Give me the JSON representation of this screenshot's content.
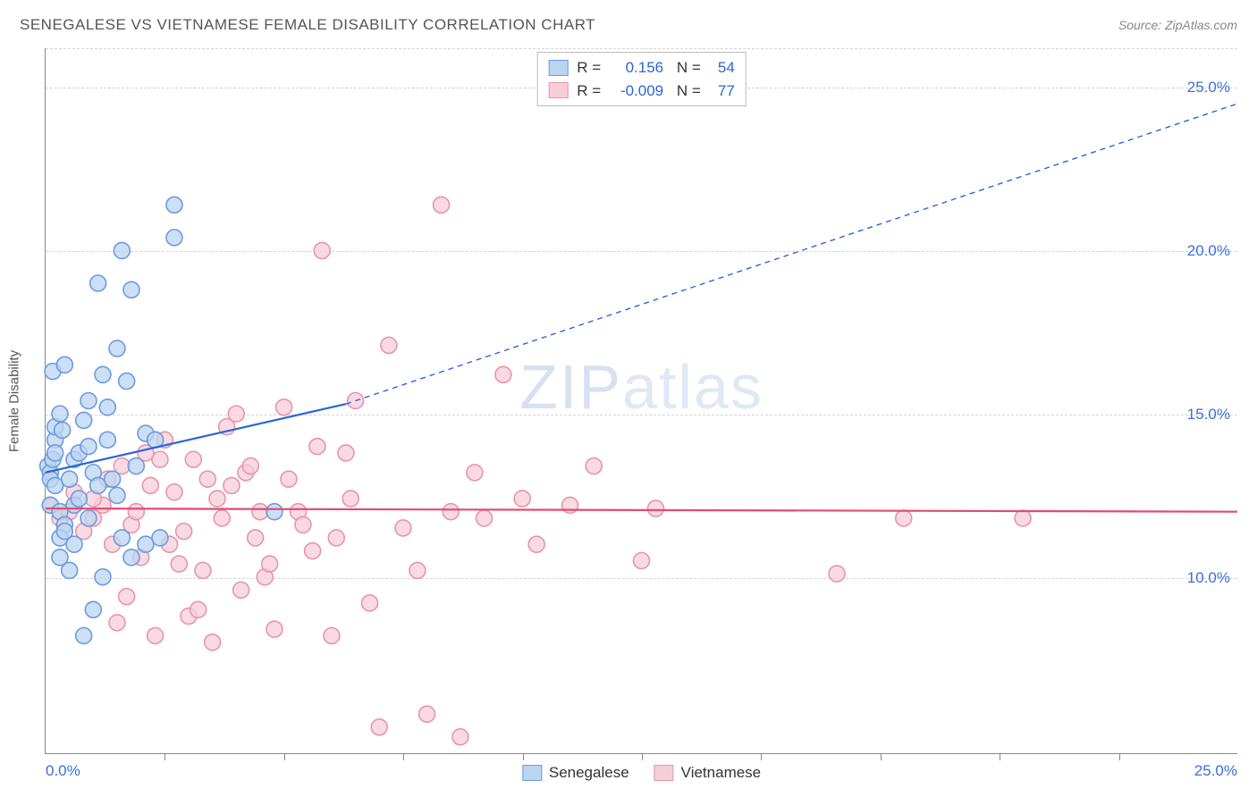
{
  "title": "SENEGALESE VS VIETNAMESE FEMALE DISABILITY CORRELATION CHART",
  "source": "Source: ZipAtlas.com",
  "watermark": "ZIPatlas",
  "ylabel": "Female Disability",
  "chart": {
    "type": "scatter",
    "xlim": [
      0,
      25
    ],
    "ylim": [
      4.6,
      26.2
    ],
    "x_origin_label": "0.0%",
    "x_max_label": "25.0%",
    "y_grid": [
      10,
      15,
      20,
      25
    ],
    "y_grid_labels": [
      "10.0%",
      "15.0%",
      "20.0%",
      "25.0%"
    ],
    "x_ticks": [
      2.5,
      5,
      7.5,
      10,
      12.5,
      15,
      17.5,
      20,
      22.5
    ],
    "grid_color": "#d5d5d5",
    "axis_color": "#888888",
    "tick_label_color": "#3b6fd6",
    "background_color": "#ffffff",
    "marker_radius": 9,
    "marker_stroke_width": 1.6,
    "line_width": 2.2,
    "dash_pattern": "6,5"
  },
  "series": [
    {
      "name": "Senegalese",
      "fill": "#bcd4f0",
      "stroke": "#6b9be0",
      "line_color": "#2b64d8",
      "R": "0.156",
      "N": "54",
      "regression": {
        "x1": 0,
        "y1": 13.2,
        "x2": 6.3,
        "y2": 15.3,
        "extend_to_x": 25,
        "extend_to_y": 24.5
      },
      "points": [
        [
          0.05,
          13.4
        ],
        [
          0.1,
          13.2
        ],
        [
          0.1,
          13.0
        ],
        [
          0.15,
          13.6
        ],
        [
          0.2,
          12.8
        ],
        [
          0.2,
          14.2
        ],
        [
          0.1,
          12.2
        ],
        [
          0.3,
          12.0
        ],
        [
          0.4,
          11.6
        ],
        [
          0.3,
          11.2
        ],
        [
          0.6,
          11.0
        ],
        [
          0.3,
          10.6
        ],
        [
          0.2,
          14.6
        ],
        [
          0.3,
          15.0
        ],
        [
          0.15,
          16.3
        ],
        [
          0.4,
          16.5
        ],
        [
          0.6,
          13.6
        ],
        [
          0.7,
          13.8
        ],
        [
          0.9,
          14.0
        ],
        [
          1.0,
          13.2
        ],
        [
          1.1,
          12.8
        ],
        [
          1.3,
          14.2
        ],
        [
          1.5,
          17.0
        ],
        [
          1.3,
          15.2
        ],
        [
          1.6,
          11.2
        ],
        [
          1.8,
          10.6
        ],
        [
          2.1,
          11.0
        ],
        [
          1.2,
          10.0
        ],
        [
          1.0,
          9.0
        ],
        [
          0.8,
          8.2
        ],
        [
          0.9,
          11.8
        ],
        [
          1.5,
          12.5
        ],
        [
          1.9,
          13.4
        ],
        [
          2.1,
          14.4
        ],
        [
          2.4,
          11.2
        ],
        [
          2.3,
          14.2
        ],
        [
          2.7,
          21.4
        ],
        [
          1.6,
          20.0
        ],
        [
          1.1,
          19.0
        ],
        [
          2.7,
          20.4
        ],
        [
          1.8,
          18.8
        ],
        [
          0.4,
          11.4
        ],
        [
          0.6,
          12.2
        ],
        [
          0.8,
          14.8
        ],
        [
          1.2,
          16.2
        ],
        [
          1.7,
          16.0
        ],
        [
          4.8,
          12.0
        ],
        [
          0.5,
          10.2
        ],
        [
          0.2,
          13.8
        ],
        [
          0.35,
          14.5
        ],
        [
          0.5,
          13.0
        ],
        [
          0.7,
          12.4
        ],
        [
          0.9,
          15.4
        ],
        [
          1.4,
          13.0
        ]
      ]
    },
    {
      "name": "Vietnamese",
      "fill": "#f7cdd8",
      "stroke": "#e695ab",
      "line_color": "#e24a72",
      "R": "-0.009",
      "N": "77",
      "regression": {
        "x1": 0,
        "y1": 12.1,
        "x2": 25,
        "y2": 12.0
      },
      "points": [
        [
          0.1,
          12.2
        ],
        [
          0.3,
          11.8
        ],
        [
          0.5,
          12.0
        ],
        [
          0.6,
          12.6
        ],
        [
          0.8,
          11.4
        ],
        [
          1.0,
          11.8
        ],
        [
          1.2,
          12.2
        ],
        [
          1.4,
          11.0
        ],
        [
          1.6,
          13.4
        ],
        [
          1.8,
          11.6
        ],
        [
          2.0,
          10.6
        ],
        [
          2.2,
          12.8
        ],
        [
          2.4,
          13.6
        ],
        [
          2.6,
          11.0
        ],
        [
          2.8,
          10.4
        ],
        [
          3.0,
          8.8
        ],
        [
          3.2,
          9.0
        ],
        [
          3.4,
          13.0
        ],
        [
          3.6,
          12.4
        ],
        [
          3.8,
          14.6
        ],
        [
          4.0,
          15.0
        ],
        [
          4.2,
          13.2
        ],
        [
          4.4,
          11.2
        ],
        [
          4.6,
          10.0
        ],
        [
          4.8,
          8.4
        ],
        [
          5.0,
          15.2
        ],
        [
          5.3,
          12.0
        ],
        [
          5.6,
          10.8
        ],
        [
          5.8,
          20.0
        ],
        [
          6.0,
          8.2
        ],
        [
          6.3,
          13.8
        ],
        [
          6.5,
          15.4
        ],
        [
          6.8,
          9.2
        ],
        [
          7.0,
          5.4
        ],
        [
          7.2,
          17.1
        ],
        [
          7.5,
          11.5
        ],
        [
          7.8,
          10.2
        ],
        [
          8.0,
          5.8
        ],
        [
          8.3,
          21.4
        ],
        [
          8.5,
          12.0
        ],
        [
          8.7,
          5.1
        ],
        [
          9.0,
          13.2
        ],
        [
          9.2,
          11.8
        ],
        [
          9.6,
          16.2
        ],
        [
          10.0,
          12.4
        ],
        [
          10.3,
          11.0
        ],
        [
          11.0,
          12.2
        ],
        [
          11.5,
          13.4
        ],
        [
          12.5,
          10.5
        ],
        [
          12.8,
          12.1
        ],
        [
          16.6,
          10.1
        ],
        [
          18.0,
          11.8
        ],
        [
          20.5,
          11.8
        ],
        [
          1.0,
          12.4
        ],
        [
          1.3,
          13.0
        ],
        [
          1.5,
          8.6
        ],
        [
          1.7,
          9.4
        ],
        [
          1.9,
          12.0
        ],
        [
          2.1,
          13.8
        ],
        [
          2.3,
          8.2
        ],
        [
          2.5,
          14.2
        ],
        [
          2.7,
          12.6
        ],
        [
          2.9,
          11.4
        ],
        [
          3.1,
          13.6
        ],
        [
          3.3,
          10.2
        ],
        [
          3.5,
          8.0
        ],
        [
          3.7,
          11.8
        ],
        [
          3.9,
          12.8
        ],
        [
          4.1,
          9.6
        ],
        [
          4.3,
          13.4
        ],
        [
          4.5,
          12.0
        ],
        [
          4.7,
          10.4
        ],
        [
          5.1,
          13.0
        ],
        [
          5.4,
          11.6
        ],
        [
          5.7,
          14.0
        ],
        [
          6.1,
          11.2
        ],
        [
          6.4,
          12.4
        ]
      ]
    }
  ],
  "legend": {
    "items": [
      "Senegalese",
      "Vietnamese"
    ]
  }
}
